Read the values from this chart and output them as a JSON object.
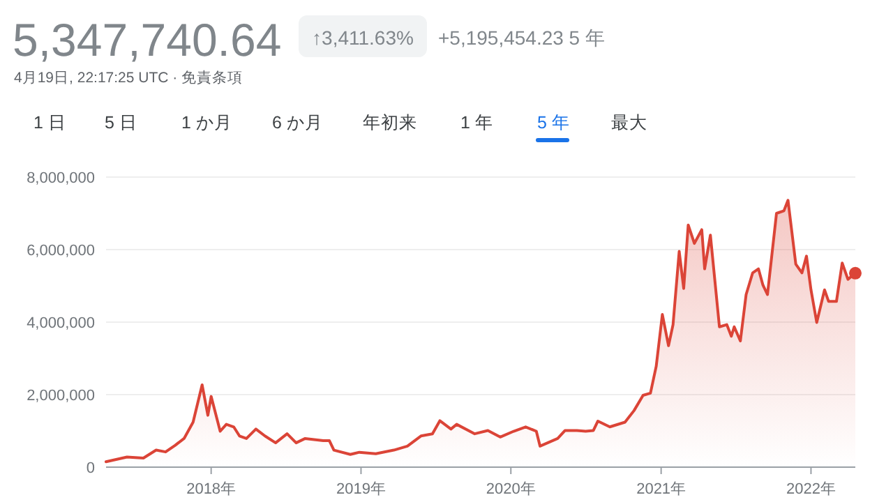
{
  "chart_data": {
    "type": "area",
    "title": "5,347,740.64",
    "annotations": [
      "↑3,411.63%",
      "+5,195,454.23 5 年",
      "4月19日, 22:17:25 UTC · 免責条項",
      "1 日",
      "5 日",
      "1 か月",
      "6 か月",
      "年初来",
      "1 年",
      "5 年",
      "最大"
    ],
    "series": [
      {
        "color": "#db4437",
        "x": [
          "2017-04-20",
          "2017-06-10",
          "2017-07-20",
          "2017-08-20",
          "2017-09-12",
          "2017-10-05",
          "2017-10-27",
          "2017-11-18",
          "2017-12-10",
          "2017-12-24",
          "2018-01-01",
          "2018-01-23",
          "2018-02-07",
          "2018-02-25",
          "2018-03-11",
          "2018-03-28",
          "2018-04-20",
          "2018-05-12",
          "2018-06-07",
          "2018-07-05",
          "2018-07-27",
          "2018-08-18",
          "2018-10-01",
          "2018-10-16",
          "2018-10-27",
          "2018-12-06",
          "2018-12-28",
          "2019-02-06",
          "2019-03-22",
          "2019-04-24",
          "2019-05-27",
          "2019-06-24",
          "2019-07-12",
          "2019-08-08",
          "2019-08-22",
          "2019-10-05",
          "2019-11-06",
          "2019-12-06",
          "2020-01-08",
          "2020-02-06",
          "2020-03-03",
          "2020-03-12",
          "2020-04-24",
          "2020-05-12",
          "2020-06-10",
          "2020-07-01",
          "2020-07-20",
          "2020-07-31",
          "2020-08-29",
          "2020-10-05",
          "2020-10-27",
          "2020-11-18",
          "2020-12-06",
          "2020-12-20",
          "2021-01-04",
          "2021-01-19",
          "2021-01-30",
          "2021-02-14",
          "2021-02-25",
          "2021-03-08",
          "2021-03-23",
          "2021-04-10",
          "2021-04-17",
          "2021-05-01",
          "2021-05-23",
          "2021-06-10",
          "2021-06-21",
          "2021-06-28",
          "2021-07-13",
          "2021-07-27",
          "2021-08-12",
          "2021-08-26",
          "2021-09-06",
          "2021-09-17",
          "2021-10-09",
          "2021-10-27",
          "2021-11-06",
          "2021-11-25",
          "2021-12-10",
          "2021-12-21",
          "2022-01-01",
          "2022-01-15",
          "2022-02-03",
          "2022-02-13",
          "2022-03-04",
          "2022-03-18",
          "2022-04-01",
          "2022-04-19"
        ],
        "values": [
          150000,
          280000,
          250000,
          470000,
          420000,
          600000,
          790000,
          1240000,
          2270000,
          1430000,
          1950000,
          990000,
          1180000,
          1110000,
          860000,
          790000,
          1050000,
          860000,
          670000,
          920000,
          670000,
          790000,
          730000,
          730000,
          470000,
          350000,
          410000,
          370000,
          470000,
          580000,
          860000,
          920000,
          1280000,
          1050000,
          1180000,
          920000,
          1010000,
          830000,
          990000,
          1110000,
          990000,
          580000,
          790000,
          1010000,
          1010000,
          990000,
          1010000,
          1270000,
          1110000,
          1240000,
          1560000,
          1980000,
          2040000,
          2780000,
          4210000,
          3350000,
          3930000,
          5950000,
          4930000,
          6680000,
          6170000,
          6550000,
          5470000,
          6400000,
          3870000,
          3930000,
          3610000,
          3870000,
          3480000,
          4760000,
          5360000,
          5470000,
          5020000,
          4760000,
          7000000,
          7070000,
          7360000,
          5600000,
          5360000,
          5820000,
          4890000,
          3990000,
          4890000,
          4570000,
          4570000,
          5630000,
          5180000,
          5350000
        ]
      },
      {
        "type": "scatter",
        "color": "#db4437",
        "x": [
          "2022-04-19"
        ],
        "values": [
          5350000
        ]
      }
    ],
    "xlim": [
      "2017-04-20",
      "2022-04-19"
    ],
    "xticks": [
      {
        "value": "2018-01-01",
        "label": "2018年"
      },
      {
        "value": "2019-01-01",
        "label": "2019年"
      },
      {
        "value": "2020-01-01",
        "label": "2020年"
      },
      {
        "value": "2021-01-01",
        "label": "2021年"
      },
      {
        "value": "2022-01-01",
        "label": "2022年"
      }
    ],
    "ylim": [
      0,
      8000000
    ],
    "yticks": [
      {
        "value": 0,
        "label": "0"
      },
      {
        "value": 2000000,
        "label": "2,000,000"
      },
      {
        "value": 4000000,
        "label": "4,000,000"
      },
      {
        "value": 6000000,
        "label": "6,000,000"
      },
      {
        "value": 8000000,
        "label": "8,000,000"
      }
    ],
    "grid": "y"
  }
}
